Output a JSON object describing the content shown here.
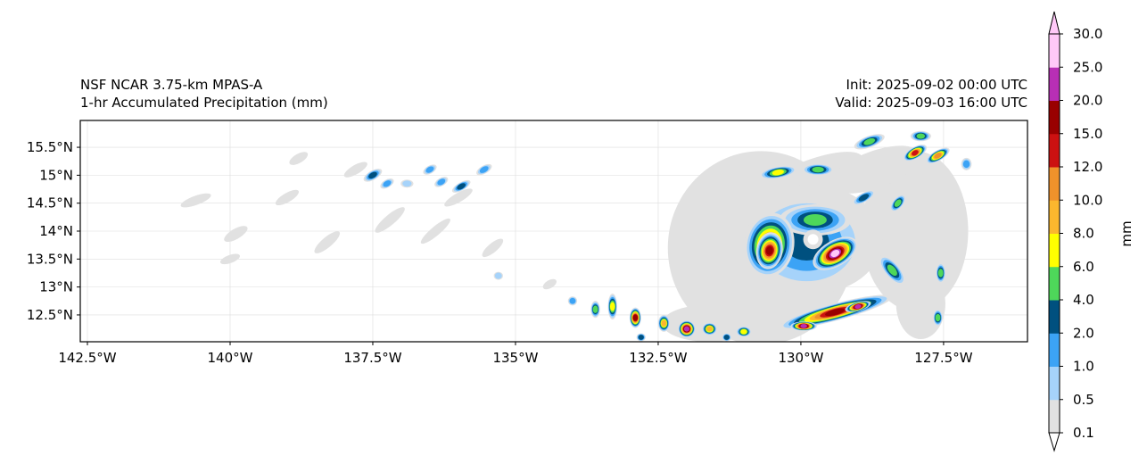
{
  "title_left": [
    "NSF NCAR 3.75-km MPAS-A",
    "1-hr Accumulated Precipitation (mm)"
  ],
  "title_right": [
    "Init: 2025-09-02 00:00 UTC",
    "Valid: 2025-09-03 16:00 UTC"
  ],
  "map": {
    "lon_range": [
      -142.625,
      -126.03
    ],
    "lat_range": [
      12.02,
      15.98
    ],
    "lon_ticks": [
      -142.5,
      -140,
      -137.5,
      -135,
      -132.5,
      -130,
      -127.5
    ],
    "lon_labels": [
      "142.5°W",
      "140°W",
      "137.5°W",
      "135°W",
      "132.5°W",
      "130°W",
      "127.5°W"
    ],
    "lat_ticks": [
      12.5,
      13,
      13.5,
      14,
      14.5,
      15,
      15.5
    ],
    "lat_labels": [
      "12.5°N",
      "13°N",
      "13.5°N",
      "14°N",
      "14.5°N",
      "15°N",
      "15.5°N"
    ],
    "storm_center": [
      -129.85,
      13.82
    ]
  },
  "colorbar": {
    "label": "mm",
    "levels": [
      "0.1",
      "0.5",
      "1.0",
      "2.0",
      "4.0",
      "6.0",
      "8.0",
      "10.0",
      "12.0",
      "15.0",
      "20.0",
      "25.0",
      "30.0"
    ],
    "colors": [
      "#e1e1e1",
      "#a6d3fa",
      "#3ca3f5",
      "#00507f",
      "#4ed75a",
      "#ffff00",
      "#fbb72e",
      "#f0922b",
      "#cc1111",
      "#990000",
      "#b82fb5",
      "#ffc8f8"
    ]
  },
  "precip_cells": [
    [
      -140.6,
      14.55,
      0.25,
      0.05,
      0,
      -20
    ],
    [
      -139.9,
      13.95,
      0.2,
      0.06,
      0,
      -30
    ],
    [
      -139.0,
      14.6,
      0.2,
      0.05,
      0,
      -30
    ],
    [
      -138.3,
      13.8,
      0.25,
      0.06,
      0,
      -40
    ],
    [
      -137.2,
      14.2,
      0.3,
      0.06,
      0,
      -40
    ],
    [
      -136.4,
      14.0,
      0.3,
      0.05,
      0,
      -40
    ],
    [
      -136.0,
      14.6,
      0.25,
      0.05,
      0,
      -30
    ],
    [
      -135.4,
      13.7,
      0.2,
      0.05,
      0,
      -40
    ],
    [
      -138.8,
      15.3,
      0.15,
      0.05,
      0,
      -30
    ],
    [
      -137.8,
      15.1,
      0.2,
      0.05,
      0,
      -30
    ],
    [
      -140.0,
      13.5,
      0.15,
      0.04,
      0,
      -20
    ],
    [
      -134.4,
      13.05,
      0.1,
      0.04,
      0,
      -30
    ],
    [
      -137.5,
      15.0,
      0.15,
      0.05,
      3,
      -30
    ],
    [
      -137.25,
      14.85,
      0.1,
      0.04,
      2,
      -30
    ],
    [
      -136.3,
      14.88,
      0.1,
      0.04,
      2,
      -30
    ],
    [
      -136.5,
      15.1,
      0.1,
      0.04,
      2,
      -30
    ],
    [
      -135.95,
      14.8,
      0.15,
      0.04,
      3,
      -30
    ],
    [
      -135.55,
      15.1,
      0.12,
      0.04,
      2,
      -30
    ],
    [
      -136.9,
      14.85,
      0.08,
      0.04,
      1,
      0
    ],
    [
      -135.3,
      13.2,
      0.05,
      0.04,
      1,
      0
    ],
    [
      -134.0,
      12.75,
      0.05,
      0.05,
      2,
      0
    ],
    [
      -128.0,
      14.0,
      0.9,
      1.4,
      0,
      0
    ],
    [
      -130.7,
      13.7,
      1.6,
      1.7,
      0,
      0
    ],
    [
      -129.8,
      15.0,
      0.9,
      0.25,
      0,
      -20
    ],
    [
      -128.7,
      15.1,
      0.8,
      0.3,
      0,
      -20
    ],
    [
      -127.9,
      12.7,
      0.4,
      0.6,
      0,
      0
    ],
    [
      -131.6,
      12.35,
      0.8,
      0.3,
      0,
      0
    ],
    [
      -129.85,
      13.85,
      1.25,
      0.95,
      2,
      0
    ],
    [
      -129.9,
      13.8,
      1.05,
      0.85,
      3,
      0
    ],
    [
      -130.55,
      13.75,
      0.4,
      0.55,
      8,
      10
    ],
    [
      -130.55,
      13.65,
      0.2,
      0.3,
      9,
      10
    ],
    [
      -129.75,
      14.2,
      0.6,
      0.25,
      4,
      0
    ],
    [
      -129.4,
      13.6,
      0.4,
      0.2,
      11,
      -30
    ],
    [
      -129.35,
      13.9,
      0.15,
      0.15,
      0,
      0
    ],
    [
      -129.4,
      12.55,
      1.0,
      0.12,
      9,
      -15
    ],
    [
      -129.0,
      12.65,
      0.2,
      0.05,
      10,
      -15
    ],
    [
      -129.95,
      12.3,
      0.2,
      0.05,
      10,
      0
    ],
    [
      -130.4,
      15.05,
      0.3,
      0.07,
      5,
      -10
    ],
    [
      -129.7,
      15.1,
      0.25,
      0.07,
      4,
      0
    ],
    [
      -128.8,
      15.6,
      0.25,
      0.07,
      4,
      -20
    ],
    [
      -128.0,
      15.4,
      0.2,
      0.07,
      8,
      -30
    ],
    [
      -127.6,
      15.35,
      0.2,
      0.06,
      7,
      -30
    ],
    [
      -127.9,
      15.7,
      0.15,
      0.06,
      4,
      0
    ],
    [
      -128.9,
      14.6,
      0.2,
      0.05,
      3,
      -30
    ],
    [
      -128.3,
      14.5,
      0.15,
      0.06,
      4,
      -50
    ],
    [
      -128.4,
      13.3,
      0.1,
      0.3,
      4,
      -40
    ],
    [
      -127.55,
      13.25,
      0.05,
      0.15,
      4,
      0
    ],
    [
      -127.6,
      12.45,
      0.05,
      0.12,
      4,
      0
    ],
    [
      -127.1,
      15.2,
      0.06,
      0.08,
      2,
      0
    ],
    [
      -133.3,
      12.65,
      0.05,
      0.2,
      5,
      0
    ],
    [
      -132.9,
      12.45,
      0.07,
      0.15,
      9,
      0
    ],
    [
      -132.4,
      12.35,
      0.07,
      0.12,
      6,
      0
    ],
    [
      -132.0,
      12.25,
      0.12,
      0.12,
      10,
      0
    ],
    [
      -131.6,
      12.25,
      0.1,
      0.08,
      6,
      0
    ],
    [
      -131.0,
      12.2,
      0.1,
      0.06,
      5,
      0
    ],
    [
      -133.6,
      12.6,
      0.05,
      0.12,
      4,
      0
    ],
    [
      -131.3,
      12.1,
      0.05,
      0.04,
      3,
      0
    ],
    [
      -132.8,
      12.1,
      0.05,
      0.04,
      3,
      0
    ]
  ]
}
